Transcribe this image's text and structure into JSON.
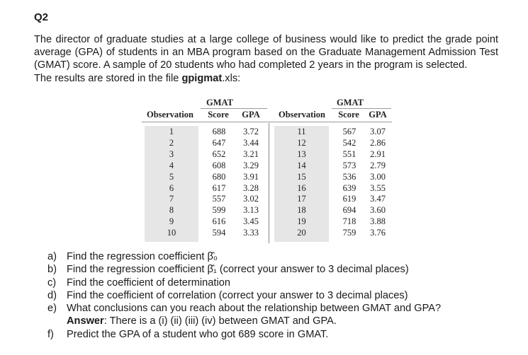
{
  "heading": "Q2",
  "intro": {
    "line1": "The director of graduate studies at a large college of business would like to predict the grade point",
    "line2": "average (GPA) of students in an MBA program based on the Graduate Management Admission",
    "line3": "Test (GMAT) score. A sample of 20 students who had completed 2 years in the program is selected.",
    "line4_prefix": "The results are stored in the file ",
    "filename": "gpigmat",
    "file_ext": ".xls:"
  },
  "table": {
    "headers": {
      "observation": "Observation",
      "gmat_top": "GMAT",
      "score": "Score",
      "gpa": "GPA"
    },
    "left": [
      {
        "obs": "1",
        "score": "688",
        "gpa": "3.72"
      },
      {
        "obs": "2",
        "score": "647",
        "gpa": "3.44"
      },
      {
        "obs": "3",
        "score": "652",
        "gpa": "3.21"
      },
      {
        "obs": "4",
        "score": "608",
        "gpa": "3.29"
      },
      {
        "obs": "5",
        "score": "680",
        "gpa": "3.91"
      },
      {
        "obs": "6",
        "score": "617",
        "gpa": "3.28"
      },
      {
        "obs": "7",
        "score": "557",
        "gpa": "3.02"
      },
      {
        "obs": "8",
        "score": "599",
        "gpa": "3.13"
      },
      {
        "obs": "9",
        "score": "616",
        "gpa": "3.45"
      },
      {
        "obs": "10",
        "score": "594",
        "gpa": "3.33"
      }
    ],
    "right": [
      {
        "obs": "11",
        "score": "567",
        "gpa": "3.07"
      },
      {
        "obs": "12",
        "score": "542",
        "gpa": "2.86"
      },
      {
        "obs": "13",
        "score": "551",
        "gpa": "2.91"
      },
      {
        "obs": "14",
        "score": "573",
        "gpa": "2.79"
      },
      {
        "obs": "15",
        "score": "536",
        "gpa": "3.00"
      },
      {
        "obs": "16",
        "score": "639",
        "gpa": "3.55"
      },
      {
        "obs": "17",
        "score": "619",
        "gpa": "3.47"
      },
      {
        "obs": "18",
        "score": "694",
        "gpa": "3.60"
      },
      {
        "obs": "19",
        "score": "718",
        "gpa": "3.88"
      },
      {
        "obs": "20",
        "score": "759",
        "gpa": "3.76"
      }
    ]
  },
  "questions": [
    {
      "letter": "a)",
      "text": "Find the regression coefficient β̂₀"
    },
    {
      "letter": "b)",
      "text": "Find the regression coefficient β̂₁ (correct your answer to 3 decimal places)"
    },
    {
      "letter": "c)",
      "text": "Find the coefficient of determination"
    },
    {
      "letter": "d)",
      "text": "Find the coefficient of correlation (correct your answer to 3 decimal places)"
    },
    {
      "letter": "e)",
      "text": "What conclusions can you reach about the relationship between GMAT and GPA?"
    },
    {
      "letter": "f)",
      "text": "Predict the GPA of a student who got 689 score in GMAT."
    }
  ],
  "answer": {
    "label": "Answer",
    "text": ": There is a (i) (ii) (iii) (iv) between GMAT and GPA."
  }
}
